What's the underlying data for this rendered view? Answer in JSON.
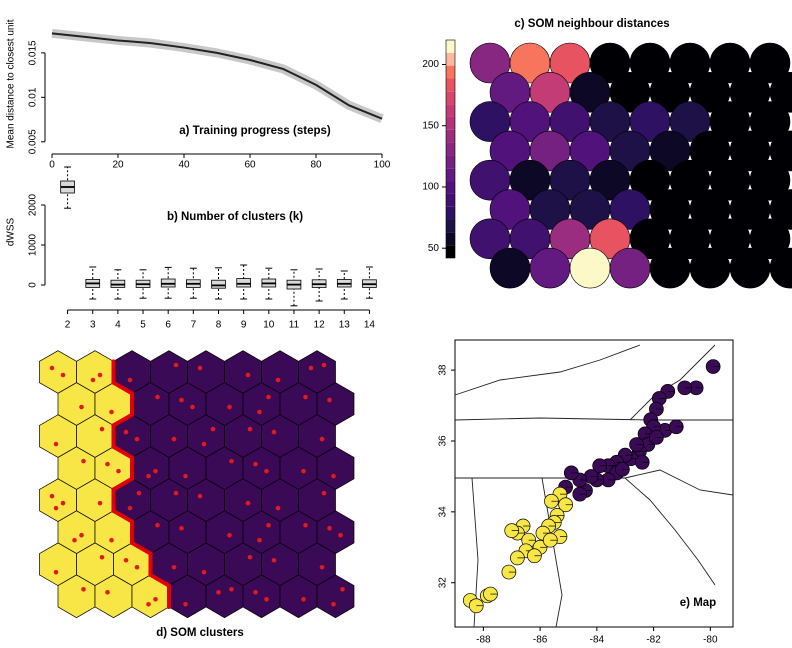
{
  "chart_data": [
    {
      "type": "line",
      "title": "a) Training progress (steps)",
      "y_label": "Mean distance to closest unit",
      "x": [
        0,
        10,
        20,
        30,
        40,
        50,
        60,
        70,
        80,
        90,
        100
      ],
      "values": [
        0.0172,
        0.0168,
        0.0164,
        0.0161,
        0.0156,
        0.015,
        0.0142,
        0.0132,
        0.0114,
        0.0091,
        0.0076
      ],
      "color": "#222222",
      "xlim": [
        0,
        100
      ],
      "xticks": [
        0,
        20,
        40,
        60,
        80,
        100
      ],
      "ylim": [
        0.0043,
        0.0187
      ],
      "yticks": [
        0.005,
        0.01,
        0.015
      ]
    },
    {
      "type": "box",
      "title": "b) Number of clusters (k)",
      "y_label": "dWSS",
      "categories": [
        "2",
        "3",
        "4",
        "5",
        "6",
        "7",
        "8",
        "9",
        "10",
        "11",
        "12",
        "13",
        "14"
      ],
      "min": [
        1920,
        -350,
        -350,
        -330,
        -330,
        -330,
        -350,
        -350,
        -350,
        -520,
        -400,
        -350,
        -330
      ],
      "q1": [
        2300,
        -60,
        -60,
        -60,
        -50,
        -60,
        -80,
        -50,
        -50,
        -100,
        -60,
        -50,
        -60
      ],
      "median": [
        2450,
        40,
        10,
        20,
        30,
        30,
        -10,
        30,
        40,
        10,
        20,
        30,
        20
      ],
      "q3": [
        2600,
        140,
        120,
        120,
        150,
        130,
        120,
        160,
        150,
        120,
        130,
        140,
        130
      ],
      "max": [
        2950,
        450,
        380,
        380,
        440,
        420,
        430,
        500,
        420,
        380,
        400,
        350,
        450
      ],
      "color": "#d9d9d9",
      "ylim": [
        -500,
        3000
      ],
      "yticks": [
        0,
        1000,
        2000
      ]
    },
    {
      "type": "som_distances",
      "title": "c) SOM neighbour distances",
      "values": [
        [
          130,
          190,
          185,
          40,
          35,
          35,
          25,
          25
        ],
        [
          105,
          160,
          60,
          15,
          50,
          40,
          15,
          25
        ],
        [
          80,
          95,
          90,
          70,
          80,
          70,
          30,
          25
        ],
        [
          100,
          120,
          95,
          70,
          60,
          15,
          15,
          30
        ],
        [
          85,
          60,
          70,
          60,
          30,
          25,
          25,
          30
        ],
        [
          95,
          70,
          70,
          75,
          30,
          25,
          35,
          50
        ],
        [
          85,
          90,
          140,
          185,
          30,
          25,
          25,
          25
        ],
        [
          60,
          110,
          220,
          125,
          25,
          25,
          15,
          25
        ]
      ],
      "colors": [
        "#000004",
        "#0c0826",
        "#1d1147",
        "#2f1163",
        "#40116e",
        "#51127c",
        "#631a80",
        "#752181",
        "#882781",
        "#9a2d80",
        "#b0347c",
        "#c43c75",
        "#d9466b",
        "#e85362",
        "#f7755c",
        "#fbb7a0",
        "#fcf8c8"
      ],
      "ylim": [
        42,
        220
      ],
      "yticks": [
        50,
        100,
        150,
        200
      ]
    },
    {
      "type": "som_clusters",
      "title": "d) SOM clusters",
      "clusters": [
        [
          1,
          1,
          2,
          2,
          2,
          2,
          2,
          2
        ],
        [
          1,
          1,
          2,
          2,
          2,
          2,
          2,
          2
        ],
        [
          1,
          1,
          2,
          2,
          2,
          2,
          2,
          2
        ],
        [
          1,
          1,
          2,
          2,
          2,
          2,
          2,
          2
        ],
        [
          1,
          1,
          2,
          2,
          2,
          2,
          2,
          2
        ],
        [
          1,
          1,
          2,
          2,
          2,
          2,
          2,
          2
        ],
        [
          1,
          1,
          1,
          2,
          2,
          2,
          2,
          2
        ],
        [
          1,
          1,
          1,
          2,
          2,
          2,
          2,
          2
        ]
      ],
      "counts": [
        [
          2,
          2,
          1,
          1,
          1,
          1,
          1,
          2
        ],
        [
          1,
          1,
          1,
          2,
          1,
          2,
          1,
          1
        ],
        [
          1,
          1,
          2,
          1,
          2,
          1,
          1,
          1
        ],
        [
          1,
          2,
          2,
          1,
          1,
          2,
          1,
          1
        ],
        [
          3,
          1,
          2,
          1,
          1,
          1,
          1,
          1
        ],
        [
          2,
          1,
          1,
          1,
          1,
          2,
          1,
          2
        ],
        [
          1,
          1,
          2,
          1,
          1,
          1,
          1,
          1
        ],
        [
          1,
          1,
          2,
          1,
          2,
          2,
          1,
          2
        ]
      ],
      "cluster_colors": [
        "#f7e645",
        "#3b0a57"
      ],
      "border_color": "#e30000",
      "point_color": "#e31a1c"
    },
    {
      "type": "scatter",
      "title": "e) Map",
      "series": [
        {
          "color": "#3b0a57",
          "x": [
            -79.9,
            -80.5,
            -80.9,
            -81.5,
            -81.8,
            -81.9,
            -82.1,
            -81.6,
            -82.0,
            -82.3,
            -82.2,
            -82.5,
            -82.6,
            -82.8,
            -83.0,
            -83.3,
            -83.6,
            -83.9,
            -83.3,
            -83.6,
            -84.0,
            -84.2,
            -84.4,
            -84.6,
            -84.9,
            -85.1,
            -84.6,
            -83.1,
            -82.4,
            -81.9,
            -81.2
          ],
          "y": [
            38.1,
            37.5,
            37.5,
            37.4,
            37.2,
            36.9,
            36.6,
            36.3,
            36.4,
            36.2,
            35.9,
            35.7,
            35.9,
            35.5,
            35.6,
            35.4,
            35.3,
            35.3,
            35.1,
            34.9,
            34.9,
            35.0,
            34.6,
            34.9,
            35.1,
            34.7,
            34.5,
            35.2,
            35.4,
            36.1,
            36.4
          ]
        },
        {
          "color": "#f7e645",
          "x": [
            -85.3,
            -85.6,
            -85.1,
            -85.4,
            -85.5,
            -85.3,
            -85.7,
            -85.9,
            -86.6,
            -86.8,
            -86.4,
            -86.0,
            -86.5,
            -86.8,
            -87.1,
            -86.2,
            -85.64,
            -88.46,
            -88.25,
            -87.86,
            -87.75,
            -87.0
          ],
          "y": [
            34.5,
            34.3,
            34.2,
            33.9,
            33.7,
            33.3,
            33.6,
            33.4,
            33.6,
            33.4,
            33.2,
            33.0,
            32.9,
            32.7,
            32.3,
            32.76,
            33.2,
            31.5,
            31.35,
            31.63,
            31.68,
            33.47
          ]
        }
      ],
      "xlim": [
        -89,
        -79.2
      ],
      "xticks": [
        -88,
        -86,
        -84,
        -82,
        -80
      ],
      "ylim": [
        30.75,
        38.85
      ],
      "yticks": [
        32,
        34,
        36,
        38
      ]
    }
  ]
}
